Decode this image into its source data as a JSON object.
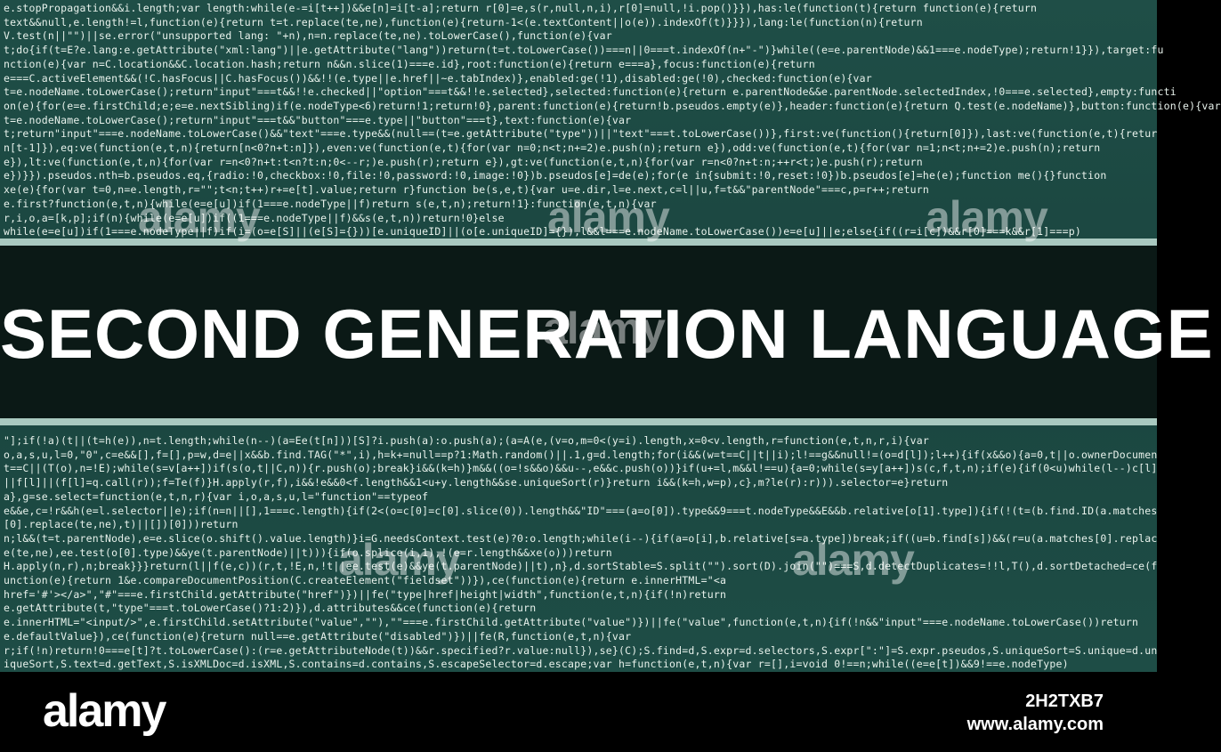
{
  "title": "SECOND GENERATION LANGUAGE",
  "watermark": "alamy",
  "footer": {
    "logo": "alamy",
    "image_id": "2H2TXB7",
    "site": "www.alamy.com"
  },
  "code": {
    "top": [
      "e.stopPropagation&&i.length;var length:while(e-=i[t++])&&e[n]=i[t-a];return r[0]=e,s(r,null,n,i),r[0]=null,!i.pop()}}),has:le(function(t){return function(e){return",
      "text&&null,e.length!=l,function(e){return t=t.replace(te,ne),function(e){return-1<(e.textContent||o(e)).indexOf(t)}}}),lang:le(function(n){return",
      "V.test(n||\"\")||se.error(\"unsupported lang: \"+n),n=n.replace(te,ne).toLowerCase(),function(e){var",
      "t;do{if(t=E?e.lang:e.getAttribute(\"xml:lang\")||e.getAttribute(\"lang\"))return(t=t.toLowerCase())===n||0===t.indexOf(n+\"-\")}while((e=e.parentNode)&&1===e.nodeType);return!1}}),target:fu",
      "nction(e){var n=C.location&&C.location.hash;return n&&n.slice(1)===e.id},root:function(e){return e===a},focus:function(e){return",
      "e===C.activeElement&&(!C.hasFocus||C.hasFocus())&&!!(e.type||e.href||~e.tabIndex)},enabled:ge(!1),disabled:ge(!0),checked:function(e){var",
      "t=e.nodeName.toLowerCase();return\"input\"===t&&!!e.checked||\"option\"===t&&!!e.selected},selected:function(e){return e.parentNode&&e.parentNode.selectedIndex,!0===e.selected},empty:functi",
      "on(e){for(e=e.firstChild;e;e=e.nextSibling)if(e.nodeType<6)return!1;return!0},parent:function(e){return!b.pseudos.empty(e)},header:function(e){return Q.test(e.nodeName)},button:function(e){var",
      "t=e.nodeName.toLowerCase();return\"input\"===t&&\"button\"===e.type||\"button\"===t},text:function(e){var",
      "t;return\"input\"===e.nodeName.toLowerCase()&&\"text\"===e.type&&(null==(t=e.getAttribute(\"type\"))||\"text\"===t.toLowerCase())},first:ve(function(){return[0]}),last:ve(function(e,t){retur",
      "n[t-1]}),eq:ve(function(e,t,n){return[n<0?n+t:n]}),even:ve(function(e,t){for(var n=0;n<t;n+=2)e.push(n);return e}),odd:ve(function(e,t){for(var n=1;n<t;n+=2)e.push(n);return",
      "e}),lt:ve(function(e,t,n){for(var r=n<0?n+t:t<n?t:n;0<--r;)e.push(r);return e}),gt:ve(function(e,t,n){for(var r=n<0?n+t:n;++r<t;)e.push(r);return",
      "e})}}).pseudos.nth=b.pseudos.eq,{radio:!0,checkbox:!0,file:!0,password:!0,image:!0})b.pseudos[e]=de(e);for(e in{submit:!0,reset:!0})b.pseudos[e]=he(e);function me(){}function",
      "xe(e){for(var t=0,n=e.length,r=\"\";t<n;t++)r+=e[t].value;return r}function be(s,e,t){var u=e.dir,l=e.next,c=l||u,f=t&&\"parentNode\"===c,p=r++;return",
      "e.first?function(e,t,n){while(e=e[u])if(1===e.nodeType||f)return s(e,t,n);return!1}:function(e,t,n){var",
      "r,i,o,a=[k,p];if(n){while(e=e[u])if((1===e.nodeType||f)&&s(e,t,n))return!0}else",
      "while(e=e[u])if(1===e.nodeType||f)if(i=(o=e[S]||(e[S]={}))[e.uniqueID]||(o[e.uniqueID]={}),l&&l===e.nodeName.toLowerCase())e=e[u]||e;else{if((r=i[c])&&r[0]===k&&r[1]===p)"
    ],
    "bottom": [
      "\"];if(!a)(t||(t=h(e)),n=t.length;while(n--)(a=Ee(t[n]))[S]?i.push(a):o.push(a);(a=A(e,(v=o,m=0<(y=i).length,x=0<v.length,r=function(e,t,n,r,i){var",
      "o,a,s,u,l=0,\"0\",c=e&&[],f=[],p=w,d=e||x&&b.find.TAG(\"*\",i),h=k+=null==p?1:Math.random()||.1,g=d.length;for(i&&(w=t==C||t||i);l!==g&&null!=(o=d[l]);l++){if(x&&o){a=0,t||o.ownerDocumen",
      "t==C||(T(o),n=!E);while(s=v[a++])if(s(o,t||C,n)){r.push(o);break}i&&(k=h)}m&&((o=!s&&o)&&u--,e&&c.push(o))}if(u+=l,m&&l!==u){a=0;while(s=y[a++])s(c,f,t,n);if(e){if(0<u)while(l--)c[l]",
      "||f[l]||(f[l]=q.call(r));f=Te(f)}H.apply(r,f),i&&!e&&0<f.length&&1<u+y.length&&se.uniqueSort(r)}return i&&(k=h,w=p),c},m?le(r):r))).selector=e}return",
      "a},g=se.select=function(e,t,n,r){var i,o,a,s,u,l=\"function\"==typeof",
      "e&&e,c=!r&&h(e=l.selector||e);if(n=n||[],1===c.length){if(2<(o=c[0]=c[0].slice(0)).length&&\"ID\"===(a=o[0]).type&&9===t.nodeType&&E&&b.relative[o[1].type]){if(!(t=(b.find.ID(a.matches",
      "[0].replace(te,ne),t)||[])[0]))return",
      "n;l&&(t=t.parentNode),e=e.slice(o.shift().value.length)}i=G.needsContext.test(e)?0:o.length;while(i--){if(a=o[i],b.relative[s=a.type])break;if((u=b.find[s])&&(r=u(a.matches[0].replac",
      "e(te,ne),ee.test(o[0].type)&&ye(t.parentNode)||t))){if(o.splice(i,1),!(e=r.length&&xe(o)))return",
      "H.apply(n,r),n;break}}}return(l||f(e,c))(r,t,!E,n,!t||ee.test(e)&&ye(t.parentNode)||t),n},d.sortStable=S.split(\"\").sort(D).join(\"\")===S,d.detectDuplicates=!!l,T(),d.sortDetached=ce(f",
      "unction(e){return 1&e.compareDocumentPosition(C.createElement(\"fieldset\"))}),ce(function(e){return e.innerHTML=\"<a",
      "href='#'></a>\",\"#\"===e.firstChild.getAttribute(\"href\")})||fe(\"type|href|height|width\",function(e,t,n){if(!n)return",
      "e.getAttribute(t,\"type\"===t.toLowerCase()?1:2)}),d.attributes&&ce(function(e){return",
      "e.innerHTML=\"<input/>\",e.firstChild.setAttribute(\"value\",\"\"),\"\"===e.firstChild.getAttribute(\"value\")})||fe(\"value\",function(e,t,n){if(!n&&\"input\"===e.nodeName.toLowerCase())return",
      "e.defaultValue}),ce(function(e){return null==e.getAttribute(\"disabled\")})||fe(R,function(e,t,n){var",
      "r;if(!n)return!0===e[t]?t.toLowerCase():(r=e.getAttributeNode(t))&&r.specified?r.value:null}),se}(C);S.find=d,S.expr=d.selectors,S.expr[\":\"]=S.expr.pseudos,S.uniqueSort=S.unique=d.un",
      "iqueSort,S.text=d.getText,S.isXMLDoc=d.isXML,S.contains=d.contains,S.escapeSelector=d.escape;var h=function(e,t,n){var r=[],i=void 0!==n;while((e=e[t])&&9!==e.nodeType)"
    ]
  }
}
